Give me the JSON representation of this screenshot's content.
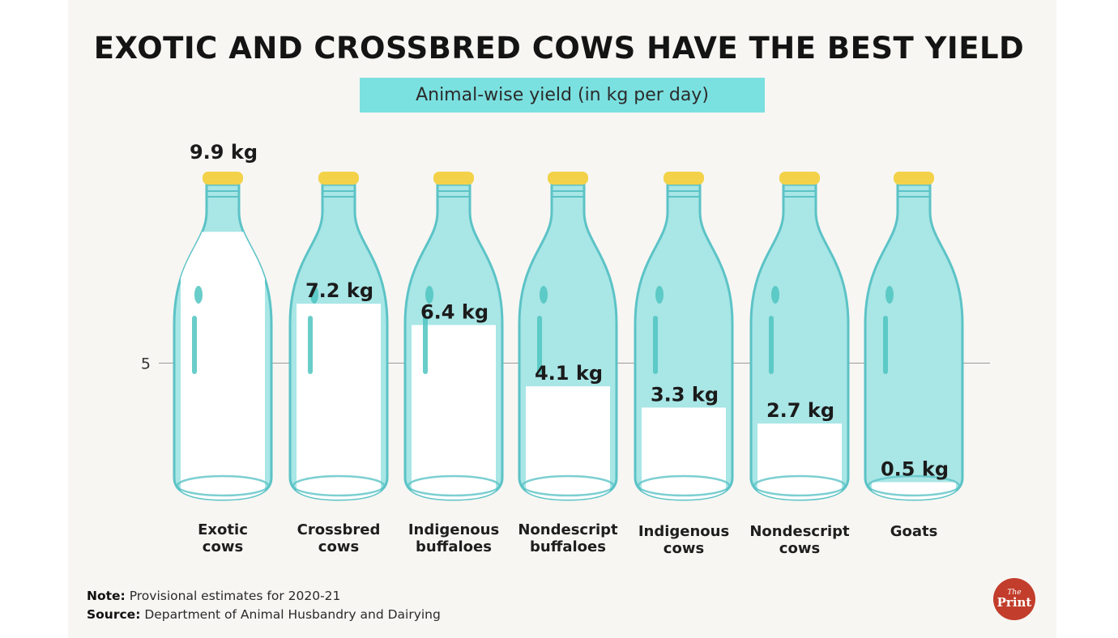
{
  "chart_data": {
    "type": "bar",
    "title": "EXOTIC AND CROSSBRED COWS HAVE THE BEST YIELD",
    "subtitle": "Animal-wise yield (in kg per day)",
    "categories": [
      [
        "Exotic",
        "cows"
      ],
      [
        "Crossbred",
        "cows"
      ],
      [
        "Indigenous",
        "buffaloes"
      ],
      [
        "Nondescript",
        "buffaloes"
      ],
      [
        "Indigenous",
        "cows"
      ],
      [
        "Nondescript",
        "cows"
      ],
      [
        "Goats"
      ]
    ],
    "values": [
      9.9,
      7.2,
      6.4,
      4.1,
      3.3,
      2.7,
      0.5
    ],
    "data_labels": [
      "9.9 kg",
      "7.2 kg",
      "6.4 kg",
      "4.1 kg",
      "3.3 kg",
      "2.7 kg",
      "0.5 kg"
    ],
    "yticks": [
      5
    ],
    "ylim": [
      0,
      10
    ],
    "unit": "kg per day",
    "colors": {
      "milk": "#ffffff",
      "glass": "#a9e6e6",
      "glass_outline": "#5cc3c6",
      "cap": "#f3d24a",
      "highlight": "#4fc4c0",
      "gridline": "#9a9a9a"
    }
  },
  "footer": {
    "note_label": "Note:",
    "note_text": "Provisional estimates for 2020-21",
    "source_label": "Source:",
    "source_text": "Department of Animal Husbandry and Dairying"
  },
  "logo": {
    "line1": "The",
    "line2": "Print"
  }
}
